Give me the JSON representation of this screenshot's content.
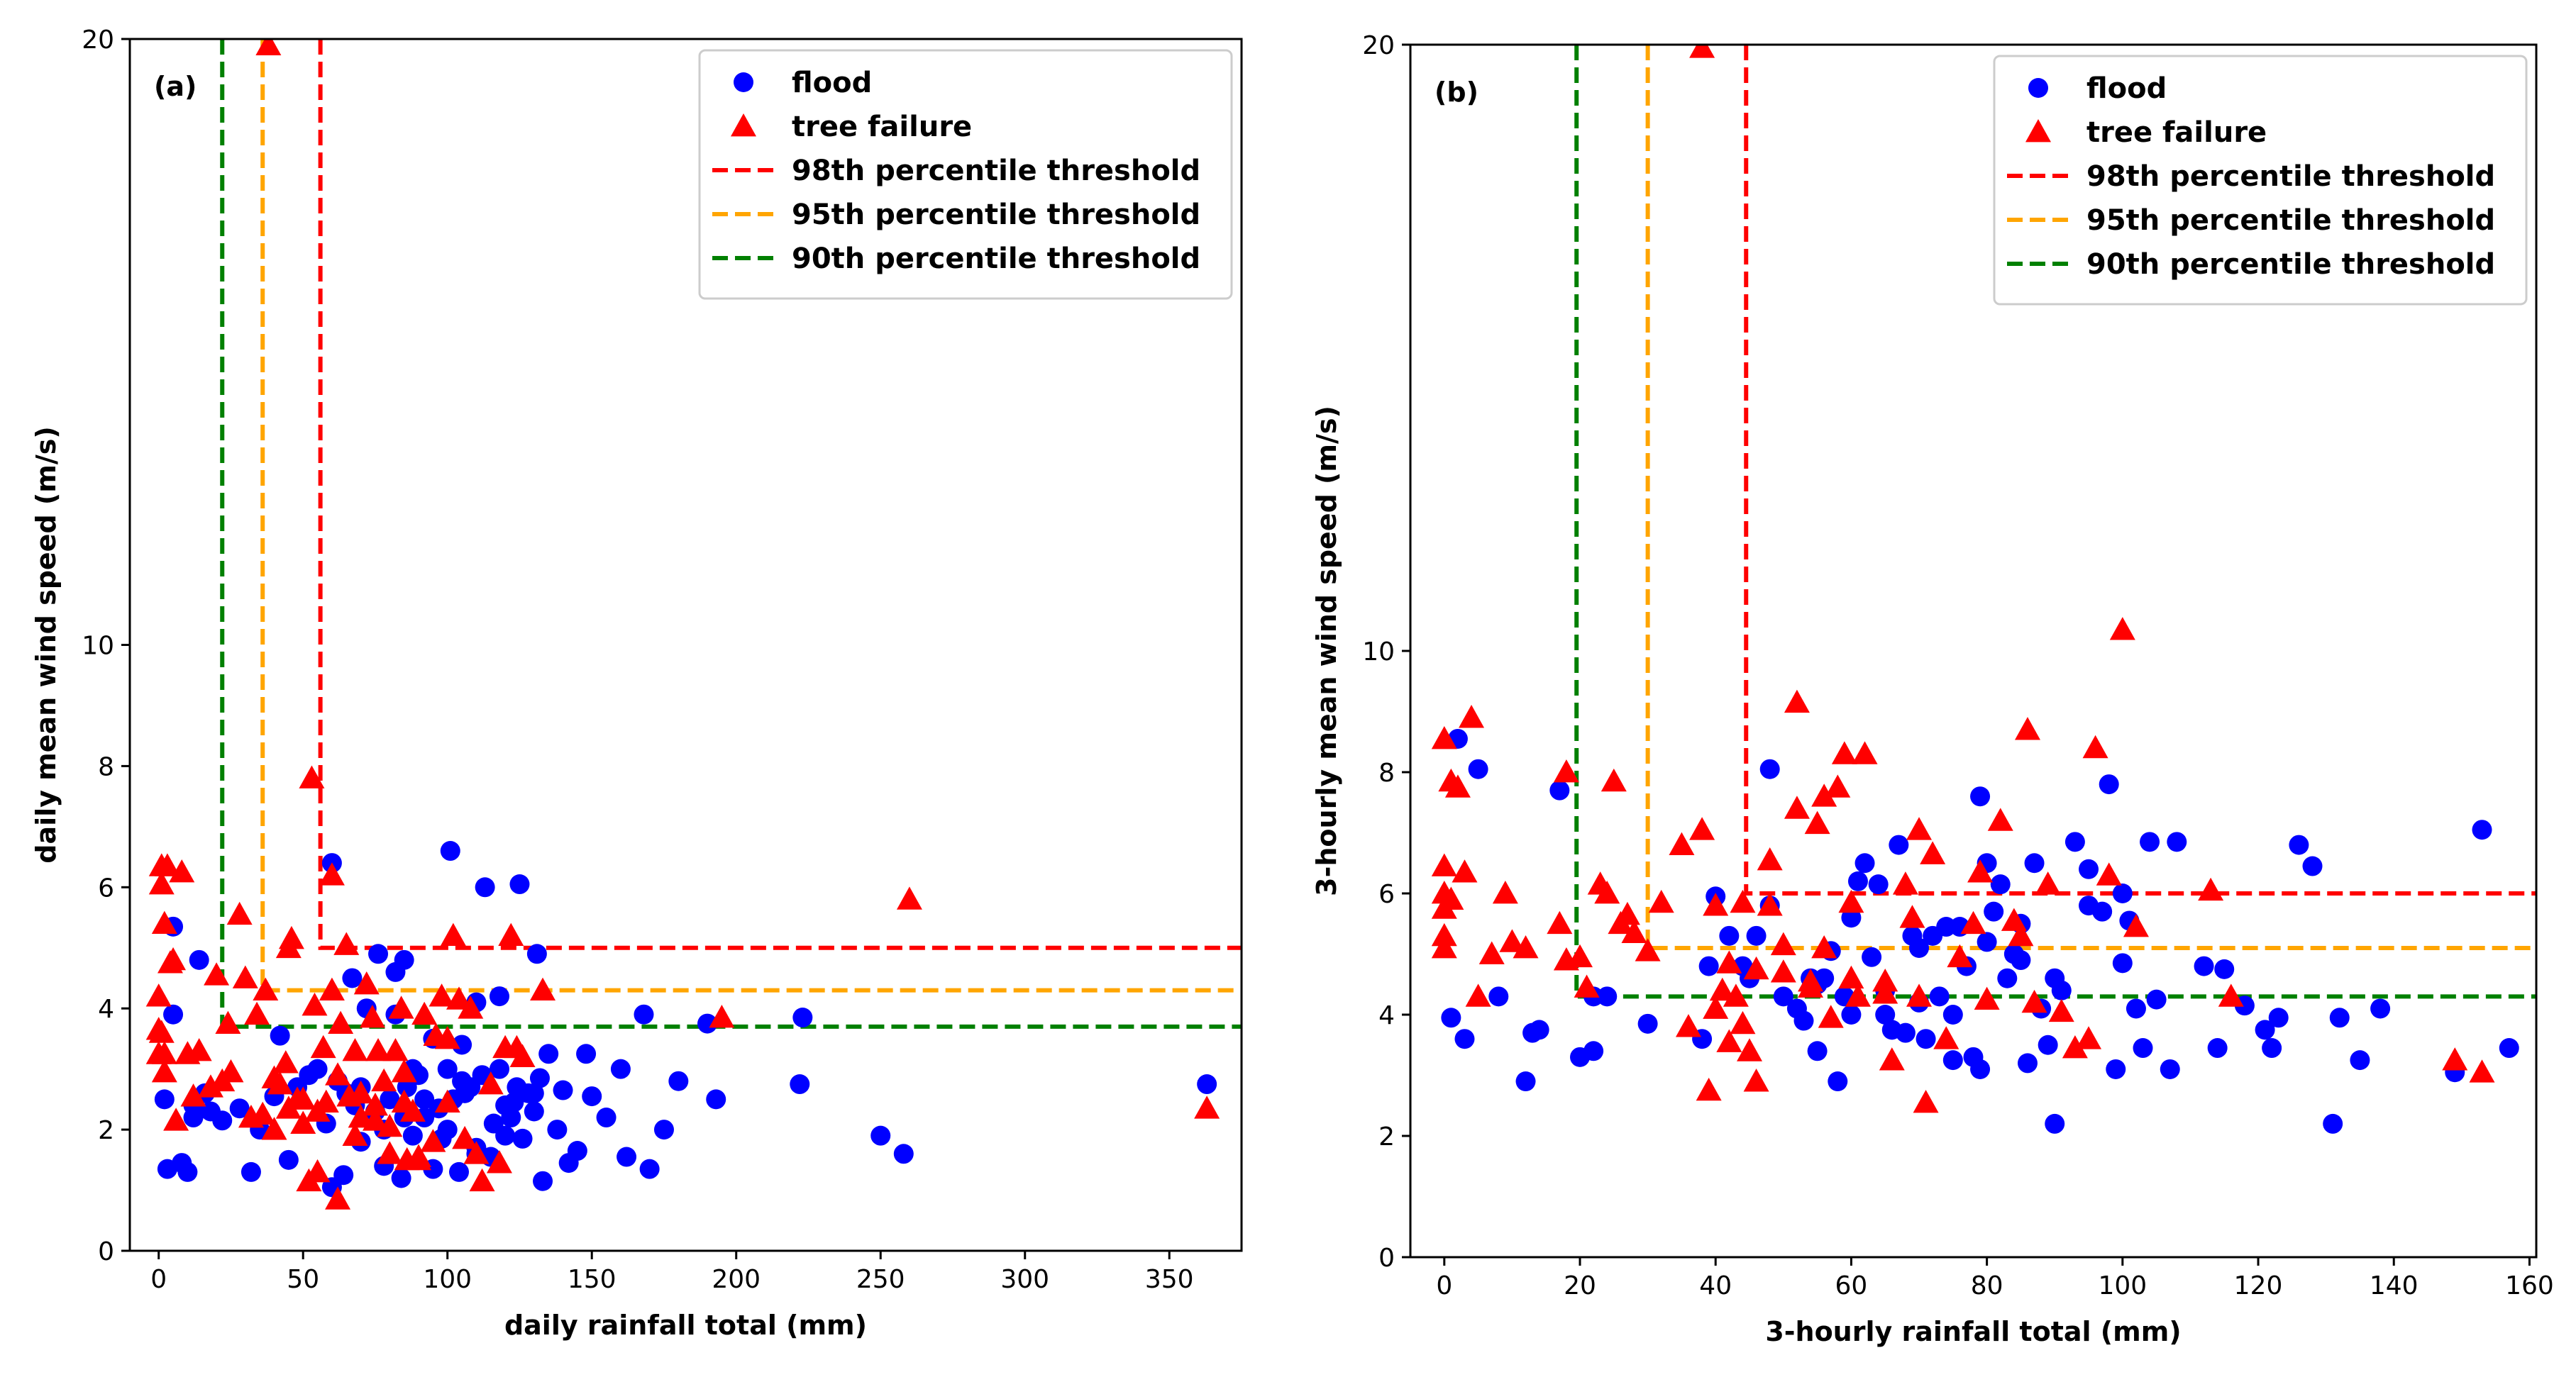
{
  "chart_data": [
    {
      "type": "scatter",
      "panel_label": "(a)",
      "xlabel": "daily rainfall total (mm)",
      "ylabel": "daily mean wind speed (m/s)",
      "xlim": [
        -10,
        375
      ],
      "ylim": [
        0,
        20
      ],
      "xticks": [
        0,
        50,
        100,
        150,
        200,
        250,
        300,
        350
      ],
      "yticks": [
        0,
        2,
        4,
        6,
        8,
        10,
        20
      ],
      "ybreak": {
        "lower_max": 10,
        "upper": 20
      },
      "legend_position": "top-right",
      "legend": [
        "flood",
        "tree failure",
        "98th percentile threshold",
        "95th percentile threshold",
        "90th percentile threshold"
      ],
      "thresholds": [
        {
          "name": "98th percentile threshold",
          "color": "#ff0000",
          "x": 56,
          "y": 5.0
        },
        {
          "name": "95th percentile threshold",
          "color": "#ffa500",
          "x": 36,
          "y": 4.3
        },
        {
          "name": "90th percentile threshold",
          "color": "#008000",
          "x": 22,
          "y": 3.7
        }
      ],
      "series": [
        {
          "name": "flood",
          "marker": "circle",
          "color": "#0000ff",
          "x": [
            2,
            3,
            5,
            8,
            12,
            14,
            16,
            18,
            22,
            28,
            32,
            35,
            40,
            42,
            45,
            48,
            52,
            55,
            58,
            60,
            62,
            64,
            65,
            67,
            68,
            70,
            72,
            75,
            76,
            78,
            78,
            80,
            82,
            82,
            84,
            85,
            86,
            88,
            90,
            92,
            95,
            97,
            98,
            100,
            101,
            102,
            104,
            105,
            106,
            108,
            110,
            110,
            112,
            113,
            115,
            116,
            118,
            118,
            120,
            122,
            123,
            124,
            125,
            126,
            128,
            130,
            131,
            132,
            133,
            135,
            138,
            140,
            142,
            145,
            148,
            150,
            155,
            160,
            162,
            168,
            170,
            175,
            180,
            190,
            193,
            222,
            223,
            250,
            258,
            363,
            12,
            10,
            5,
            60,
            70,
            85,
            100,
            110,
            120,
            130,
            92,
            88,
            95,
            105
          ],
          "y": [
            2.5,
            1.35,
            3.9,
            1.45,
            2.2,
            4.8,
            2.6,
            2.3,
            2.15,
            2.35,
            1.3,
            2.0,
            2.55,
            3.55,
            1.5,
            2.7,
            2.9,
            3.0,
            2.1,
            1.05,
            2.8,
            1.25,
            2.6,
            4.5,
            2.4,
            1.8,
            4.0,
            2.3,
            4.9,
            1.4,
            2.0,
            2.5,
            4.6,
            3.9,
            1.2,
            4.8,
            2.7,
            3.0,
            2.9,
            2.2,
            1.35,
            2.35,
            1.85,
            3.0,
            6.6,
            2.5,
            1.3,
            2.8,
            2.6,
            2.7,
            1.7,
            4.1,
            2.9,
            6.0,
            1.55,
            2.1,
            3.0,
            4.2,
            1.9,
            2.2,
            2.45,
            2.7,
            6.05,
            1.85,
            2.6,
            2.3,
            4.9,
            2.85,
            1.15,
            3.25,
            2.0,
            2.65,
            1.45,
            1.65,
            3.25,
            2.55,
            2.2,
            3.0,
            1.55,
            3.9,
            1.35,
            2.0,
            2.8,
            3.75,
            2.5,
            2.75,
            3.85,
            1.9,
            1.6,
            2.75,
            2.4,
            1.3,
            5.35,
            6.4,
            2.7,
            2.2,
            2.0,
            1.6,
            2.4,
            2.6,
            2.5,
            1.9,
            3.5,
            3.4
          ],
          "color_hex": "#0000ff"
        },
        {
          "name": "tree failure",
          "marker": "triangle",
          "color": "#ff0000",
          "x": [
            0,
            0,
            1,
            1,
            2,
            2,
            3,
            4,
            5,
            6,
            8,
            10,
            12,
            14,
            18,
            20,
            22,
            24,
            25,
            28,
            30,
            32,
            34,
            36,
            37,
            38,
            40,
            42,
            44,
            45,
            46,
            48,
            50,
            52,
            53,
            54,
            55,
            57,
            58,
            60,
            60,
            62,
            63,
            65,
            66,
            68,
            68,
            70,
            72,
            74,
            75,
            76,
            78,
            80,
            82,
            84,
            85,
            86,
            88,
            90,
            92,
            95,
            96,
            98,
            100,
            102,
            104,
            106,
            108,
            110,
            112,
            115,
            118,
            120,
            122,
            124,
            126,
            133,
            195,
            260,
            363,
            0,
            1,
            2,
            40,
            45,
            50,
            55,
            62,
            70,
            75,
            80,
            85,
            90,
            100
          ],
          "y": [
            3.25,
            4.2,
            3.6,
            6.05,
            2.95,
            5.4,
            6.35,
            4.75,
            4.8,
            2.15,
            6.25,
            3.25,
            2.55,
            3.3,
            2.7,
            4.55,
            2.8,
            3.75,
            2.95,
            5.55,
            4.5,
            2.2,
            3.9,
            2.25,
            4.3,
            19.9,
            2.0,
            2.75,
            3.1,
            5.0,
            5.15,
            2.5,
            2.1,
            1.15,
            7.8,
            4.05,
            2.3,
            3.35,
            2.45,
            6.2,
            4.3,
            0.85,
            3.75,
            5.05,
            2.55,
            3.3,
            1.9,
            2.2,
            4.4,
            3.85,
            2.15,
            3.3,
            2.8,
            1.6,
            3.3,
            4.0,
            2.45,
            1.5,
            2.3,
            1.55,
            3.9,
            1.8,
            3.55,
            4.2,
            3.5,
            5.2,
            4.15,
            1.85,
            4.0,
            1.6,
            1.15,
            2.75,
            1.45,
            3.35,
            5.2,
            3.35,
            3.2,
            4.3,
            3.85,
            5.8,
            2.35,
            3.65,
            6.35,
            3.25,
            2.85,
            2.35,
            2.5,
            1.3,
            2.9,
            2.6,
            2.4,
            2.05,
            2.95,
            1.5,
            2.45
          ],
          "color_hex": "#ff0000"
        }
      ]
    },
    {
      "type": "scatter",
      "panel_label": "(b)",
      "xlabel": "3-hourly rainfall total (mm)",
      "ylabel": "3-hourly mean wind speed (m/s)",
      "xlim": [
        -5,
        161
      ],
      "ylim": [
        0,
        20
      ],
      "xticks": [
        0,
        20,
        40,
        60,
        80,
        100,
        120,
        140,
        160
      ],
      "yticks": [
        0,
        2,
        4,
        6,
        8,
        10,
        20
      ],
      "ybreak": {
        "lower_max": 10,
        "upper": 20
      },
      "legend_position": "top-right",
      "legend": [
        "flood",
        "tree failure",
        "98th percentile threshold",
        "95th percentile threshold",
        "90th percentile threshold"
      ],
      "thresholds": [
        {
          "name": "98th percentile threshold",
          "color": "#ff0000",
          "x": 44.5,
          "y": 6.0
        },
        {
          "name": "95th percentile threshold",
          "color": "#ffa500",
          "x": 30,
          "y": 5.1
        },
        {
          "name": "90th percentile threshold",
          "color": "#008000",
          "x": 19.5,
          "y": 4.3
        }
      ],
      "series": [
        {
          "name": "flood",
          "marker": "circle",
          "color": "#0000ff",
          "x": [
            1,
            2,
            3,
            5,
            8,
            12,
            13,
            14,
            17,
            20,
            22,
            22,
            24,
            30,
            38,
            39,
            40,
            42,
            44,
            45,
            46,
            48,
            48,
            50,
            52,
            53,
            54,
            55,
            56,
            57,
            58,
            59,
            60,
            61,
            62,
            63,
            64,
            65,
            66,
            67,
            68,
            69,
            70,
            71,
            72,
            73,
            74,
            75,
            76,
            77,
            78,
            79,
            79,
            80,
            81,
            82,
            83,
            84,
            85,
            86,
            87,
            88,
            89,
            90,
            91,
            93,
            95,
            97,
            98,
            99,
            100,
            101,
            102,
            103,
            104,
            105,
            107,
            108,
            112,
            114,
            115,
            118,
            121,
            122,
            123,
            126,
            128,
            131,
            132,
            135,
            138,
            149,
            153,
            157,
            90,
            100,
            70,
            65,
            80,
            85,
            60,
            55,
            75,
            95
          ],
          "y": [
            3.95,
            8.55,
            3.6,
            8.05,
            4.3,
            2.9,
            3.7,
            3.75,
            7.7,
            3.3,
            3.4,
            4.3,
            4.3,
            3.85,
            3.6,
            4.8,
            5.95,
            5.3,
            4.8,
            4.6,
            5.3,
            8.05,
            5.8,
            4.3,
            4.1,
            3.9,
            4.6,
            3.4,
            4.6,
            5.05,
            2.9,
            4.3,
            5.6,
            6.2,
            6.5,
            4.95,
            6.15,
            4.4,
            3.75,
            6.8,
            3.7,
            5.3,
            5.1,
            3.6,
            5.3,
            4.3,
            5.45,
            3.25,
            5.45,
            4.8,
            3.3,
            7.6,
            3.1,
            6.5,
            5.7,
            6.15,
            4.6,
            5.0,
            5.5,
            3.2,
            6.5,
            4.1,
            3.5,
            4.6,
            4.4,
            6.85,
            6.4,
            5.7,
            7.8,
            3.1,
            4.85,
            5.55,
            4.1,
            3.45,
            6.85,
            4.25,
            3.1,
            6.85,
            4.8,
            3.45,
            4.75,
            4.15,
            3.75,
            3.45,
            3.95,
            6.8,
            6.45,
            2.2,
            3.95,
            3.25,
            4.1,
            3.05,
            7.05,
            3.45,
            2.2,
            6.0,
            4.2,
            4.0,
            5.2,
            4.9,
            4.0,
            4.5,
            4.0,
            5.8
          ],
          "color_hex": "#0000ff"
        },
        {
          "name": "tree failure",
          "marker": "triangle",
          "color": "#ff0000",
          "x": [
            0,
            0,
            0,
            0,
            0,
            0,
            1,
            1,
            2,
            3,
            4,
            5,
            7,
            9,
            10,
            12,
            17,
            18,
            18,
            20,
            21,
            23,
            24,
            25,
            26,
            27,
            28,
            30,
            32,
            35,
            36,
            38,
            39,
            40,
            41,
            42,
            43,
            44,
            45,
            46,
            48,
            50,
            52,
            54,
            55,
            56,
            57,
            58,
            59,
            60,
            61,
            62,
            65,
            66,
            68,
            69,
            70,
            71,
            72,
            74,
            76,
            78,
            79,
            82,
            84,
            86,
            87,
            89,
            91,
            93,
            95,
            96,
            98,
            100,
            102,
            113,
            116,
            149,
            153,
            38,
            40,
            42,
            44,
            46,
            48,
            50,
            52,
            54,
            56,
            70,
            60,
            65,
            80,
            85
          ],
          "y": [
            5.75,
            5.3,
            5.1,
            6.0,
            6.45,
            8.55,
            7.85,
            5.9,
            7.75,
            6.35,
            8.9,
            4.3,
            5.0,
            6.0,
            5.2,
            5.1,
            5.5,
            8.0,
            4.9,
            4.95,
            4.45,
            6.15,
            6.0,
            7.85,
            5.5,
            5.65,
            5.35,
            5.05,
            5.85,
            6.8,
            3.8,
            19.95,
            2.75,
            4.1,
            4.4,
            3.55,
            4.3,
            5.85,
            3.4,
            2.9,
            6.55,
            4.7,
            9.15,
            4.45,
            7.15,
            5.1,
            3.95,
            7.75,
            8.3,
            4.6,
            4.3,
            8.3,
            4.55,
            3.25,
            6.15,
            5.6,
            7.05,
            2.55,
            6.65,
            3.6,
            4.95,
            5.5,
            6.35,
            7.2,
            5.55,
            8.7,
            4.2,
            6.15,
            4.05,
            3.45,
            3.6,
            8.4,
            6.3,
            10.35,
            5.45,
            6.05,
            4.3,
            3.25,
            3.05,
            7.05,
            5.8,
            4.85,
            3.85,
            4.75,
            5.8,
            5.15,
            7.4,
            4.55,
            7.6,
            4.3,
            5.85,
            4.35,
            4.25,
            5.3
          ],
          "color_hex": "#ff0000"
        }
      ]
    }
  ]
}
